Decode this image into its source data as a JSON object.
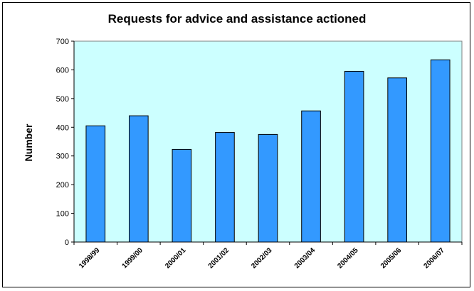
{
  "chart_data": {
    "type": "bar",
    "title": "Requests for advice and assistance actioned",
    "xlabel": "",
    "ylabel": "Number",
    "categories": [
      "1998/99",
      "1999/00",
      "2000/01",
      "2001/02",
      "2002/03",
      "2003/04",
      "2004/05",
      "2005/06",
      "2006/07"
    ],
    "values": [
      405,
      440,
      323,
      382,
      375,
      457,
      595,
      572,
      635
    ],
    "ylim": [
      0,
      700
    ],
    "yticks": [
      "0",
      "100",
      "200",
      "300",
      "400",
      "500",
      "600",
      "700"
    ],
    "grid": false,
    "legend": "none",
    "colors": {
      "plot_background": "#ccffff",
      "bar_fill": "#3399ff",
      "bar_stroke": "#000000"
    }
  }
}
